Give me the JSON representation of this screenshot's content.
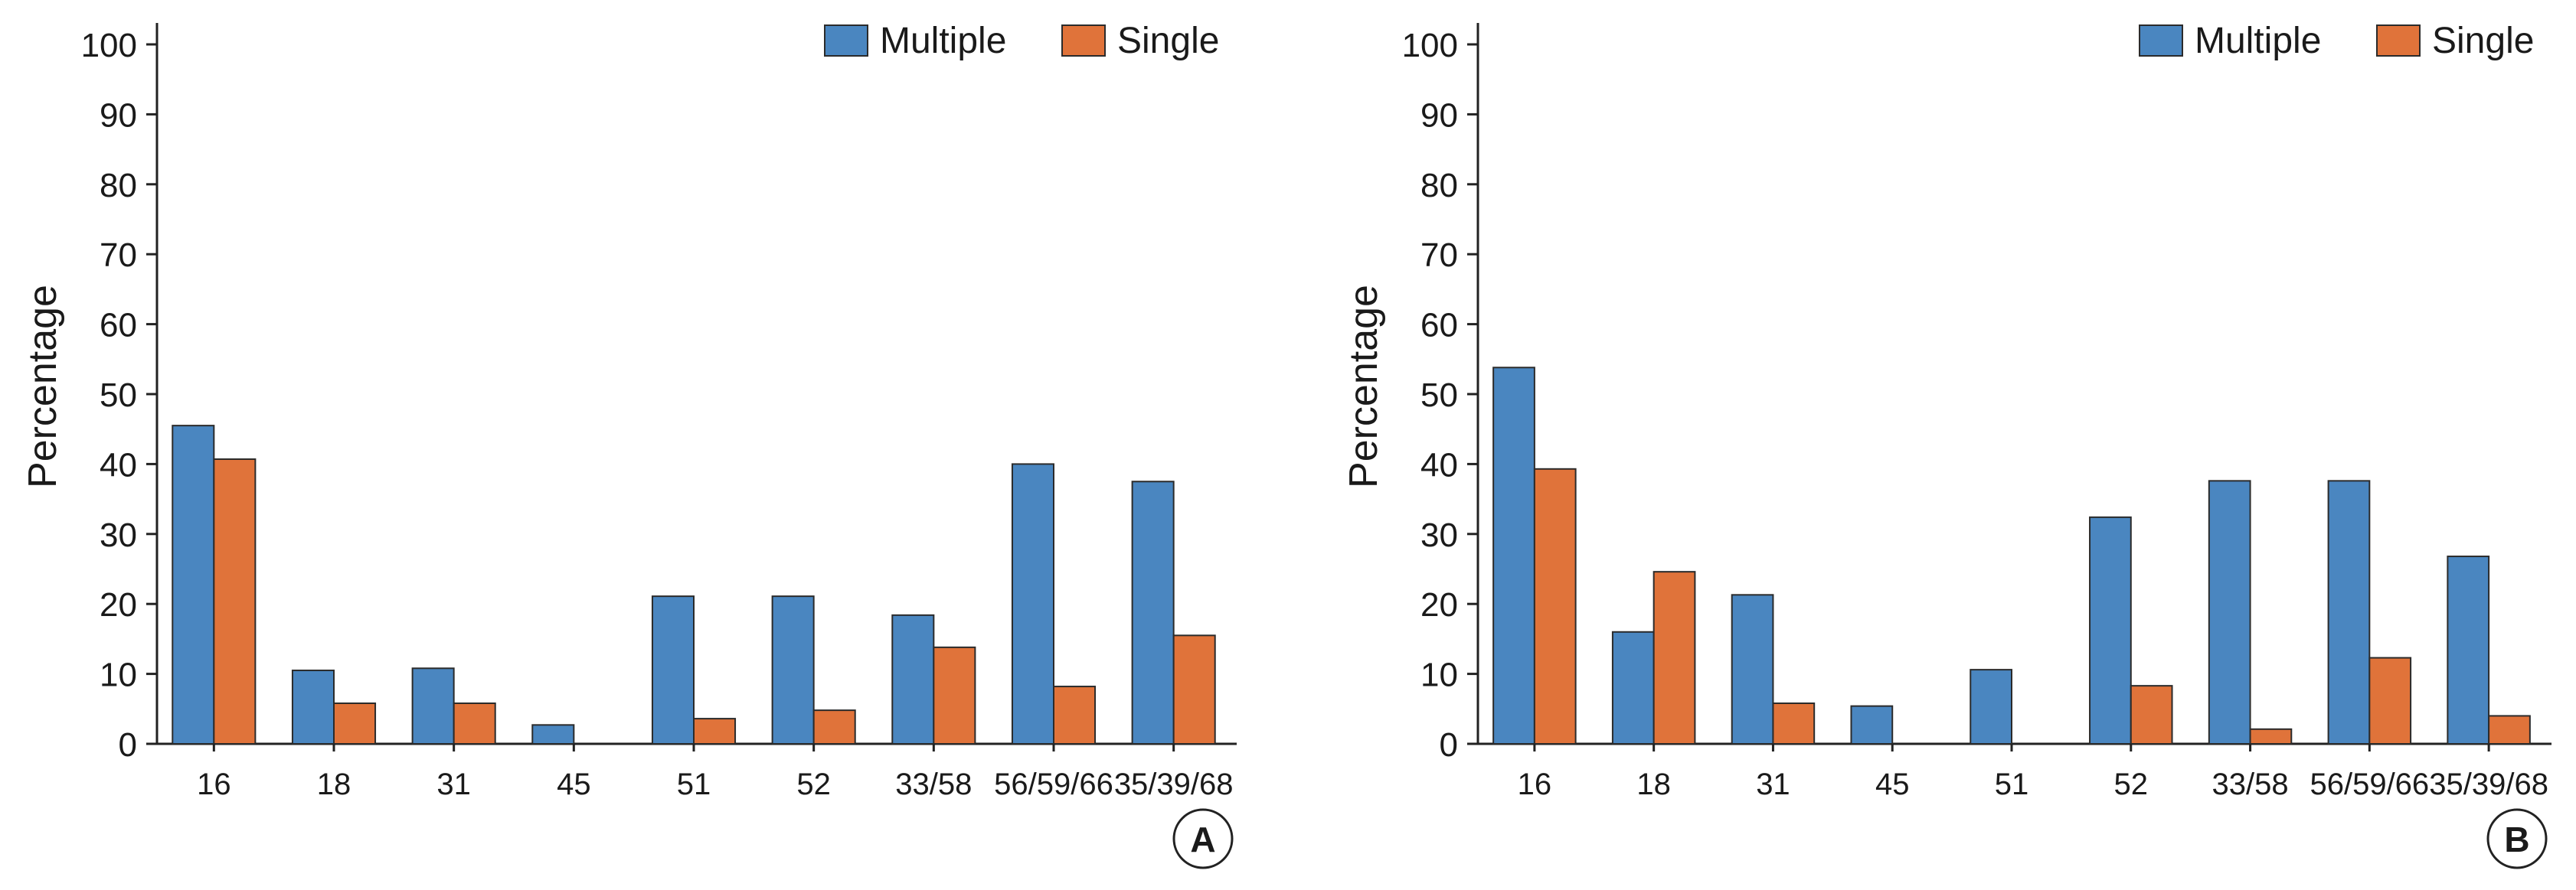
{
  "chart_data": [
    {
      "type": "bar",
      "panel": "A",
      "ylabel": "Percentage",
      "xlabel": "",
      "ylim": [
        0,
        100
      ],
      "yticks": [
        0,
        10,
        20,
        30,
        40,
        50,
        60,
        70,
        80,
        90,
        100
      ],
      "categories": [
        "16",
        "18",
        "31",
        "45",
        "51",
        "52",
        "33/58",
        "56/59/66",
        "35/39/68"
      ],
      "series": [
        {
          "name": "Multiple",
          "color": "#4a86c0",
          "values": [
            45.5,
            10.5,
            10.8,
            2.7,
            21.1,
            21.1,
            18.4,
            40.0,
            37.5
          ]
        },
        {
          "name": "Single",
          "color": "#e0733a",
          "values": [
            40.7,
            5.8,
            5.8,
            0,
            3.6,
            4.8,
            13.8,
            8.2,
            15.5
          ]
        }
      ],
      "legend": "top-right",
      "grid": false
    },
    {
      "type": "bar",
      "panel": "B",
      "ylabel": "Percentage",
      "xlabel": "",
      "ylim": [
        0,
        100
      ],
      "yticks": [
        0,
        10,
        20,
        30,
        40,
        50,
        60,
        70,
        80,
        90,
        100
      ],
      "categories": [
        "16",
        "18",
        "31",
        "45",
        "51",
        "52",
        "33/58",
        "56/59/66",
        "35/39/68"
      ],
      "series": [
        {
          "name": "Multiple",
          "color": "#4a86c0",
          "values": [
            53.8,
            16.0,
            21.3,
            5.4,
            10.6,
            32.4,
            37.6,
            37.6,
            26.8
          ]
        },
        {
          "name": "Single",
          "color": "#e0733a",
          "values": [
            39.3,
            24.6,
            5.8,
            0,
            0,
            8.3,
            2.1,
            12.3,
            4.0
          ]
        }
      ],
      "legend": "top-right",
      "grid": false
    }
  ]
}
